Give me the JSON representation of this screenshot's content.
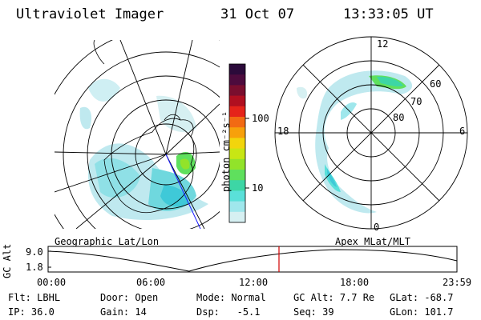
{
  "header": {
    "instrument": "Ultraviolet Imager",
    "date": "31 Oct 07",
    "time": "13:33:05 UT"
  },
  "colorbar": {
    "label": "photon cm⁻²s⁻¹",
    "ticks": [
      "100",
      "10"
    ],
    "colors": [
      "#2b0a3a",
      "#4d0b3d",
      "#7a0e2e",
      "#b00f20",
      "#e5231a",
      "#f26a13",
      "#f7a00b",
      "#f2d50c",
      "#c8e614",
      "#92e32a",
      "#5fe05d",
      "#3dd6a5",
      "#5ae0d9",
      "#9fe7ec",
      "#d6f0f2"
    ]
  },
  "polar": {
    "lat_labels": [
      "60",
      "70",
      "80"
    ],
    "mlt_labels": [
      "12",
      "18",
      "6",
      "0"
    ]
  },
  "timeline": {
    "y_axis_label": "GC Alt",
    "y_ticks": [
      "9.0",
      "1.8"
    ],
    "left_title": "Geographic Lat/Lon",
    "right_title": "Apex  MLat/MLT",
    "x_ticks": [
      "00:00",
      "06:00",
      "12:00",
      "18:00",
      "23:59"
    ],
    "marker_color": "#d00000"
  },
  "status": {
    "row1": [
      {
        "label": "Flt:",
        "value": "LBHL"
      },
      {
        "label": "Door:",
        "value": "Open"
      },
      {
        "label": "Mode:",
        "value": "Normal"
      },
      {
        "label": "GC Alt:",
        "value": "7.7 Re"
      },
      {
        "label": "GLat:",
        "value": "-68.7"
      }
    ],
    "row2": [
      {
        "label": "IP:",
        "value": "36.0"
      },
      {
        "label": "Gain:",
        "value": "14"
      },
      {
        "label": "Dsp:",
        "value": "  -5.1"
      },
      {
        "label": "Seq:",
        "value": "39"
      },
      {
        "label": "GLon:",
        "value": "101.7"
      }
    ]
  }
}
